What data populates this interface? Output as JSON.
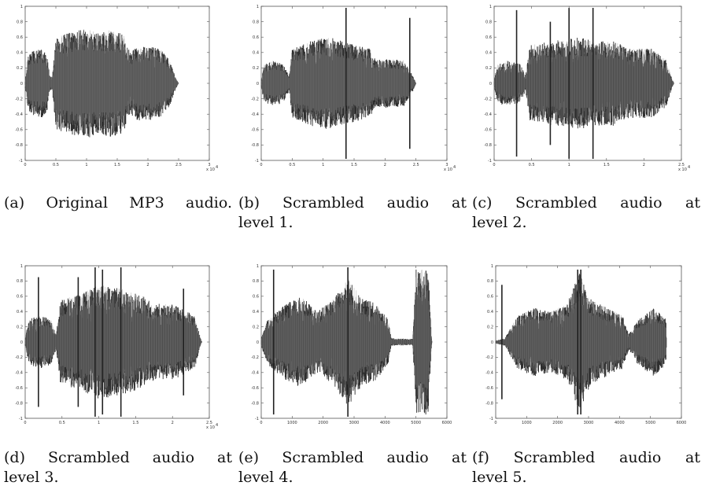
{
  "chart_data": [
    {
      "type": "line",
      "caption_tag": "(a)",
      "caption_line1": "Original MP3 audio.",
      "caption_line2": "",
      "xlim": [
        0,
        3
      ],
      "ylim": [
        -1,
        1
      ],
      "xticks": [
        0,
        0.5,
        1,
        1.5,
        2,
        2.5,
        3
      ],
      "xtick_labels": [
        "0",
        "0.5",
        "1",
        "1.5",
        "2",
        "2.5",
        "3"
      ],
      "yticks": [
        -1,
        -0.8,
        -0.6,
        -0.4,
        -0.2,
        0,
        0.2,
        0.4,
        0.6,
        0.8,
        1
      ],
      "ytick_labels": [
        "-1",
        "-0.8",
        "-0.6",
        "-0.4",
        "-0.2",
        "0",
        "0.2",
        "0.4",
        "0.6",
        "0.8",
        "1"
      ],
      "x_multiplier": "x 10",
      "x_multiplier_exp": "4",
      "envelope": [
        [
          0,
          0.05
        ],
        [
          0.05,
          0.35
        ],
        [
          0.12,
          0.42
        ],
        [
          0.28,
          0.45
        ],
        [
          0.36,
          0.35
        ],
        [
          0.4,
          0.1
        ],
        [
          0.44,
          0.08
        ],
        [
          0.5,
          0.6
        ],
        [
          0.7,
          0.65
        ],
        [
          1.0,
          0.72
        ],
        [
          1.2,
          0.65
        ],
        [
          1.4,
          0.7
        ],
        [
          1.6,
          0.65
        ],
        [
          1.68,
          0.45
        ],
        [
          1.72,
          0.4
        ],
        [
          1.85,
          0.5
        ],
        [
          2.0,
          0.48
        ],
        [
          2.2,
          0.45
        ],
        [
          2.35,
          0.3
        ],
        [
          2.45,
          0.08
        ],
        [
          2.5,
          0
        ]
      ],
      "spikes": []
    },
    {
      "type": "line",
      "caption_tag": "(b)",
      "caption_line1": "Scrambled audio at",
      "caption_line2": "level 1.",
      "xlim": [
        0,
        3
      ],
      "ylim": [
        -1,
        1
      ],
      "xticks": [
        0,
        0.5,
        1,
        1.5,
        2,
        2.5,
        3
      ],
      "xtick_labels": [
        "0",
        "0.5",
        "1",
        "1.5",
        "2",
        "2.5",
        "3"
      ],
      "yticks": [
        -1,
        -0.8,
        -0.6,
        -0.4,
        -0.2,
        0,
        0.2,
        0.4,
        0.6,
        0.8,
        1
      ],
      "ytick_labels": [
        "-1",
        "-0.8",
        "-0.6",
        "-0.4",
        "-0.2",
        "0",
        "0.2",
        "0.4",
        "0.6",
        "0.8",
        "1"
      ],
      "x_multiplier": "x 10",
      "x_multiplier_exp": "4",
      "envelope": [
        [
          0,
          0.05
        ],
        [
          0.05,
          0.25
        ],
        [
          0.2,
          0.3
        ],
        [
          0.35,
          0.25
        ],
        [
          0.45,
          0.1
        ],
        [
          0.5,
          0.45
        ],
        [
          0.8,
          0.55
        ],
        [
          1.1,
          0.6
        ],
        [
          1.3,
          0.55
        ],
        [
          1.5,
          0.5
        ],
        [
          1.75,
          0.45
        ],
        [
          1.85,
          0.3
        ],
        [
          2.0,
          0.32
        ],
        [
          2.3,
          0.3
        ],
        [
          2.45,
          0.1
        ],
        [
          2.5,
          0
        ]
      ],
      "spikes": [
        [
          1.37,
          0.98
        ],
        [
          2.4,
          0.85
        ]
      ]
    },
    {
      "type": "line",
      "caption_tag": "(c)",
      "caption_line1": "Scrambled audio at",
      "caption_line2": "level 2.",
      "xlim": [
        0,
        2.5
      ],
      "ylim": [
        -1,
        1
      ],
      "xticks": [
        0,
        0.5,
        1,
        1.5,
        2,
        2.5
      ],
      "xtick_labels": [
        "0",
        "0.5",
        "1",
        "1.5",
        "2",
        "2.5"
      ],
      "yticks": [
        -1,
        -0.8,
        -0.6,
        -0.4,
        -0.2,
        0,
        0.2,
        0.4,
        0.6,
        0.8,
        1
      ],
      "ytick_labels": [
        "-1",
        "-0.8",
        "-0.6",
        "-0.4",
        "-0.2",
        "0",
        "0.2",
        "0.4",
        "0.6",
        "0.8",
        "1"
      ],
      "x_multiplier": "x 10",
      "x_multiplier_exp": "4",
      "envelope": [
        [
          0,
          0.05
        ],
        [
          0.05,
          0.25
        ],
        [
          0.15,
          0.3
        ],
        [
          0.35,
          0.25
        ],
        [
          0.42,
          0.1
        ],
        [
          0.48,
          0.5
        ],
        [
          0.8,
          0.55
        ],
        [
          1.1,
          0.6
        ],
        [
          1.4,
          0.55
        ],
        [
          1.6,
          0.55
        ],
        [
          1.8,
          0.45
        ],
        [
          2.1,
          0.45
        ],
        [
          2.3,
          0.3
        ],
        [
          2.38,
          0.05
        ],
        [
          2.4,
          0
        ]
      ],
      "spikes": [
        [
          0.3,
          0.95
        ],
        [
          1.0,
          0.98
        ],
        [
          1.32,
          0.98
        ],
        [
          0.75,
          0.8
        ]
      ]
    },
    {
      "type": "line",
      "caption_tag": "(d)",
      "caption_line1": "Scrambled audio at",
      "caption_line2": "level 3.",
      "xlim": [
        0,
        2.5
      ],
      "ylim": [
        -1,
        1
      ],
      "xticks": [
        0,
        0.5,
        1,
        1.5,
        2,
        2.5
      ],
      "xtick_labels": [
        "0",
        "0.5",
        "1",
        "1.5",
        "2",
        "2.5"
      ],
      "yticks": [
        -1,
        -0.8,
        -0.6,
        -0.4,
        -0.2,
        0,
        0.2,
        0.4,
        0.6,
        0.8,
        1
      ],
      "ytick_labels": [
        "-1",
        "-0.8",
        "-0.6",
        "-0.4",
        "-0.2",
        "0",
        "0.2",
        "0.4",
        "0.6",
        "0.8",
        "1"
      ],
      "x_multiplier": "x 10",
      "x_multiplier_exp": "4",
      "envelope": [
        [
          0,
          0.05
        ],
        [
          0.05,
          0.3
        ],
        [
          0.2,
          0.35
        ],
        [
          0.35,
          0.3
        ],
        [
          0.42,
          0.1
        ],
        [
          0.48,
          0.55
        ],
        [
          0.8,
          0.65
        ],
        [
          1.0,
          0.75
        ],
        [
          1.3,
          0.7
        ],
        [
          1.6,
          0.6
        ],
        [
          1.75,
          0.5
        ],
        [
          2.0,
          0.5
        ],
        [
          2.3,
          0.35
        ],
        [
          2.38,
          0.05
        ],
        [
          2.4,
          0
        ]
      ],
      "spikes": [
        [
          0.18,
          0.85
        ],
        [
          0.72,
          0.85
        ],
        [
          0.95,
          0.98
        ],
        [
          1.05,
          0.95
        ],
        [
          1.3,
          0.98
        ],
        [
          2.15,
          0.7
        ]
      ]
    },
    {
      "type": "line",
      "caption_tag": "(e)",
      "caption_line1": "Scrambled audio at",
      "caption_line2": "level 4.",
      "xlim": [
        0,
        6000
      ],
      "ylim": [
        -1,
        1
      ],
      "xticks": [
        0,
        1000,
        2000,
        3000,
        4000,
        5000,
        6000
      ],
      "xtick_labels": [
        "0",
        "1000",
        "2000",
        "3000",
        "4000",
        "5000",
        "6000"
      ],
      "yticks": [
        -1,
        -0.8,
        -0.6,
        -0.4,
        -0.2,
        0,
        0.2,
        0.4,
        0.6,
        0.8,
        1
      ],
      "ytick_labels": [
        "-1",
        "-0.8",
        "-0.6",
        "-0.4",
        "-0.2",
        "0",
        "0.2",
        "0.4",
        "0.6",
        "0.8",
        "1"
      ],
      "x_multiplier": "",
      "x_multiplier_exp": "",
      "envelope": [
        [
          0,
          0.05
        ],
        [
          200,
          0.3
        ],
        [
          800,
          0.5
        ],
        [
          1300,
          0.6
        ],
        [
          1800,
          0.4
        ],
        [
          2300,
          0.55
        ],
        [
          2800,
          0.85
        ],
        [
          3200,
          0.6
        ],
        [
          3700,
          0.5
        ],
        [
          4100,
          0.3
        ],
        [
          4200,
          0.05
        ],
        [
          4800,
          0.04
        ],
        [
          4900,
          0.05
        ],
        [
          5000,
          0.95
        ],
        [
          5400,
          0.95
        ],
        [
          5500,
          0.05
        ],
        [
          5520,
          0
        ]
      ],
      "spikes": [
        [
          2800,
          0.98
        ],
        [
          400,
          0.95
        ]
      ]
    },
    {
      "type": "line",
      "caption_tag": "(f)",
      "caption_line1": "Scrambled audio at",
      "caption_line2": "level 5.",
      "xlim": [
        0,
        6000
      ],
      "ylim": [
        -1,
        1
      ],
      "xticks": [
        0,
        1000,
        2000,
        3000,
        4000,
        5000,
        6000
      ],
      "xtick_labels": [
        "0",
        "1000",
        "2000",
        "3000",
        "4000",
        "5000",
        "6000"
      ],
      "yticks": [
        -1,
        -0.8,
        -0.6,
        -0.4,
        -0.2,
        0,
        0.2,
        0.4,
        0.6,
        0.8,
        1
      ],
      "ytick_labels": [
        "-1",
        "-0.8",
        "-0.6",
        "-0.4",
        "-0.2",
        "0",
        "0.2",
        "0.4",
        "0.6",
        "0.8",
        "1"
      ],
      "x_multiplier": "",
      "x_multiplier_exp": "",
      "envelope": [
        [
          0,
          0.02
        ],
        [
          300,
          0.05
        ],
        [
          700,
          0.35
        ],
        [
          1200,
          0.45
        ],
        [
          1800,
          0.4
        ],
        [
          2300,
          0.5
        ],
        [
          2700,
          0.9
        ],
        [
          3100,
          0.55
        ],
        [
          3600,
          0.45
        ],
        [
          4100,
          0.35
        ],
        [
          4300,
          0.1
        ],
        [
          4600,
          0.3
        ],
        [
          5100,
          0.45
        ],
        [
          5500,
          0.3
        ],
        [
          5520,
          0
        ]
      ],
      "spikes": [
        [
          2650,
          0.95
        ],
        [
          2750,
          0.95
        ],
        [
          200,
          0.75
        ]
      ]
    }
  ]
}
